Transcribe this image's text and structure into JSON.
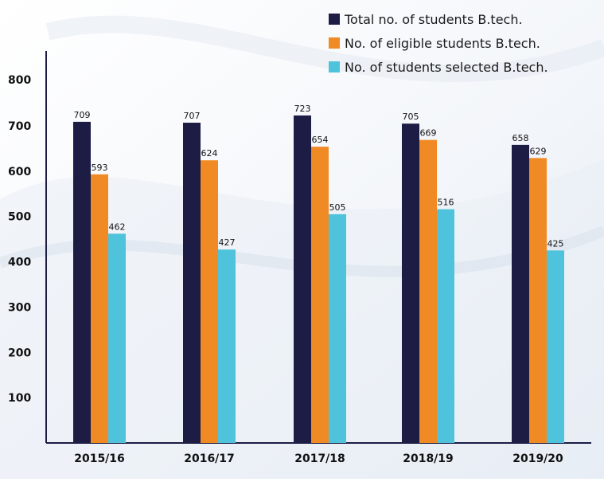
{
  "chart_data": {
    "type": "bar",
    "categories": [
      "2015/16",
      "2016/17",
      "2017/18",
      "2018/19",
      "2019/20"
    ],
    "series": [
      {
        "name": "Total no. of students B.tech.",
        "color": "#1c1c44",
        "values": [
          709,
          707,
          723,
          705,
          658
        ]
      },
      {
        "name": "No. of eligible students B.tech.",
        "color": "#f08a24",
        "values": [
          593,
          624,
          654,
          669,
          629
        ]
      },
      {
        "name": "No. of students selected B.tech.",
        "color": "#4fc3dc",
        "values": [
          462,
          427,
          505,
          516,
          425
        ]
      }
    ],
    "yticks": [
      100,
      200,
      300,
      400,
      500,
      600,
      700,
      800
    ],
    "ylim": [
      0,
      800
    ],
    "title": "",
    "xlabel": "",
    "ylabel": "",
    "legend_position": "top-right",
    "grid": false
  }
}
